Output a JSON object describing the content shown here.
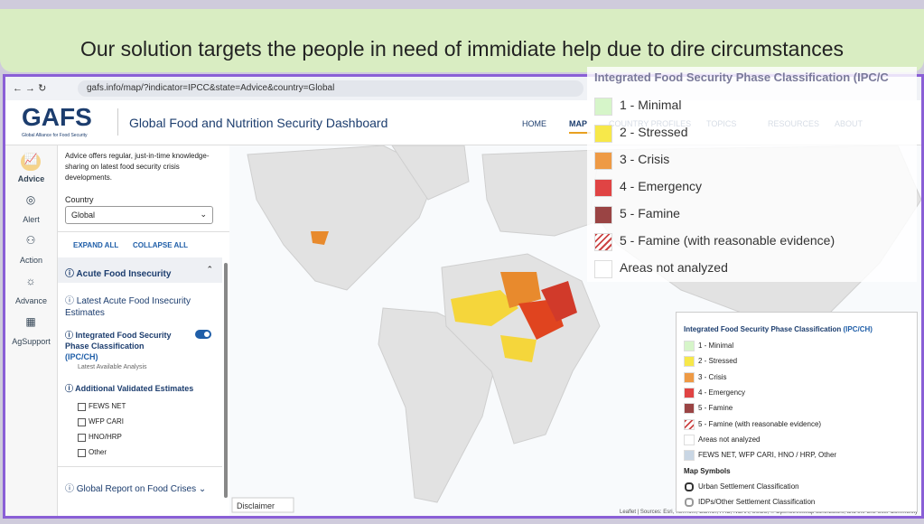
{
  "banner": "Our solution targets the people in need of immidiate help due to dire circumstances",
  "browser": {
    "url": "gafs.info/map/?indicator=IPCC&state=Advice&country=Global"
  },
  "header": {
    "logo": "GAFS",
    "logo_subtitle": "Global Alliance for Food Security",
    "title": "Global Food and Nutrition Security Dashboard",
    "nav": [
      "HOME",
      "MAP",
      "COUNTRY PROFILES",
      "TOPICS",
      "RESOURCES",
      "ABOUT"
    ]
  },
  "rail": [
    "Advice",
    "Alert",
    "Action",
    "Advance",
    "AgSupport"
  ],
  "sidebar": {
    "intro": "Advice offers regular, just-in-time knowledge-sharing on latest food security crisis developments.",
    "country_label": "Country",
    "country_value": "Global",
    "expand": "EXPAND ALL",
    "collapse": "COLLAPSE ALL",
    "section": "Acute Food Insecurity",
    "subsection": "Latest Acute Food Insecurity Estimates",
    "layer": "Integrated Food Security Phase Classification",
    "layer_link": "(IPC/CH)",
    "layer_note": "Latest Available Analysis",
    "additional": "Additional Validated Estimates",
    "checkboxes": [
      "FEWS NET",
      "WFP CARI",
      "HNO/HRP",
      "Other"
    ],
    "report": "Global Report on Food Crises"
  },
  "overlay_legend": {
    "title": "Integrated Food Security Phase Classification (IPC/C",
    "items": [
      "1 - Minimal",
      "2 - Stressed",
      "3 - Crisis",
      "4 - Emergency",
      "5 - Famine",
      "5 - Famine (with reasonable evidence)",
      "Areas not analyzed"
    ]
  },
  "legend": {
    "title": "Integrated Food Security Phase Classification",
    "title_link": "(IPC/CH)",
    "items": [
      "1 - Minimal",
      "2 - Stressed",
      "3 - Crisis",
      "4 - Emergency",
      "5 - Famine",
      "5 - Famine (with reasonable evidence)",
      "Areas not analyzed",
      "FEWS NET, WFP CARI, HNO / HRP, Other"
    ],
    "symbols_title": "Map Symbols",
    "symbols": [
      "Urban Settlement Classification",
      "IDPs/Other Settlement Classification"
    ]
  },
  "disclaimer": "Disclaimer",
  "attribution": "Leaflet | Sources: Esri, TomTom, Garmin, FAO, NOAA, USGS, © OpenStreetMap contributors, and the GIS User Community"
}
